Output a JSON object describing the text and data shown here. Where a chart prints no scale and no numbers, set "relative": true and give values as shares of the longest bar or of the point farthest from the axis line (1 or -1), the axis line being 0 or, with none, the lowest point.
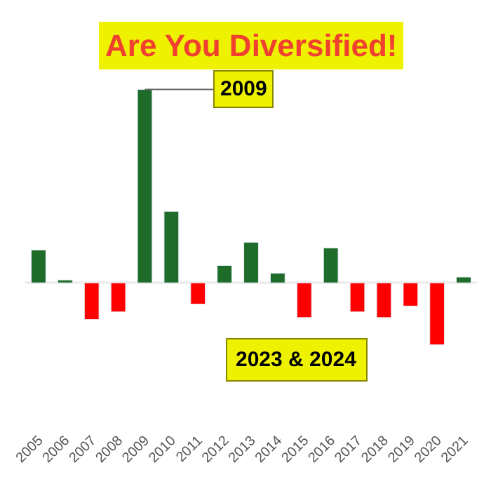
{
  "chart_data": {
    "type": "bar",
    "title": "Are You Diversified!",
    "relative": true,
    "categories": [
      "2005",
      "2006",
      "2007",
      "2008",
      "2009",
      "2010",
      "2011",
      "2012",
      "2013",
      "2014",
      "2015",
      "2016",
      "2017",
      "2018",
      "2019",
      "2020",
      "2021"
    ],
    "values": [
      0.17,
      0.015,
      -0.19,
      -0.15,
      1,
      0.37,
      -0.11,
      0.09,
      0.21,
      0.05,
      -0.18,
      0.18,
      -0.15,
      -0.18,
      -0.12,
      -0.32,
      0.03
    ],
    "colors": [
      "#1e6b2a",
      "#1e6b2a",
      "#ff0000",
      "#ff0000",
      "#1e6b2a",
      "#1e6b2a",
      "#ff0000",
      "#1e6b2a",
      "#1e6b2a",
      "#1e6b2a",
      "#ff0000",
      "#1e6b2a",
      "#ff0000",
      "#ff0000",
      "#ff0000",
      "#ff0000",
      "#1e6b2a"
    ],
    "annotations": [
      {
        "text": "2009",
        "x": "2009",
        "y": 1
      },
      "2023 & 2024"
    ],
    "legend": false
  }
}
